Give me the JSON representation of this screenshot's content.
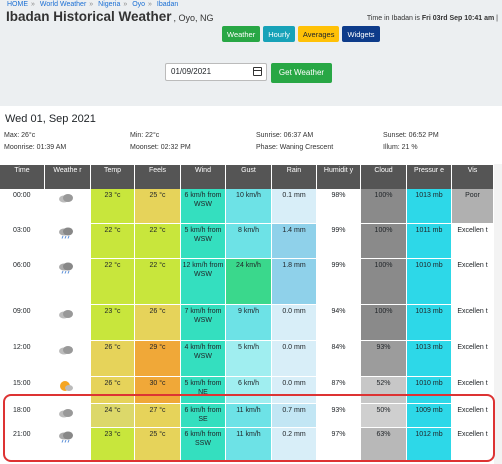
{
  "breadcrumb": [
    "HOME",
    "World Weather",
    "Nigeria",
    "Oyo",
    "Ibadan"
  ],
  "title": "Ibadan Historical Weather",
  "location": ", Oyo, NG",
  "time_label": "Time in Ibadan is ",
  "time_value": "Fri 03rd Sep 10:41 am",
  "time_suffix": " |",
  "nav_buttons": [
    "Weather",
    "Hourly",
    "Averages",
    "Widgets"
  ],
  "date_input": "01/09/2021",
  "get_weather": "Get Weather",
  "day_title": "Wed 01, Sep 2021",
  "summary": {
    "max": "Max: 26°c",
    "min": "Min: 22°c",
    "sunrise": "Sunrise: 06:37 AM",
    "sunset": "Sunset: 06:52 PM",
    "moonrise": "Moonrise: 01:39 AM",
    "moonset": "Moonset: 02:32 PM",
    "phase": "Phase: Waning Crescent",
    "illum": "Illum: 21 %"
  },
  "headers": [
    "Time",
    "Weathe r",
    "Temp",
    "Feels",
    "Wind",
    "Gust",
    "Rain",
    "Humidit y",
    "Cloud",
    "Pressur e",
    "Vis"
  ],
  "rows": [
    {
      "time": "00:00",
      "temp": "23 °c",
      "feels": "25 °c",
      "wind": "6 km/h from WSW",
      "gust": "10 km/h",
      "rain": "0.1 mm",
      "humidity": "98%",
      "cloud": "100%",
      "pressure": "1013 mb",
      "vis": "Poor"
    },
    {
      "time": "03:00",
      "temp": "22 °c",
      "feels": "22 °c",
      "wind": "5 km/h from WSW",
      "gust": "8 km/h",
      "rain": "1.4 mm",
      "humidity": "99%",
      "cloud": "100%",
      "pressure": "1011 mb",
      "vis": "Excellen t"
    },
    {
      "time": "06:00",
      "temp": "22 °c",
      "feels": "22 °c",
      "wind": "12 km/h from WSW",
      "gust": "24 km/h",
      "rain": "1.8 mm",
      "humidity": "99%",
      "cloud": "100%",
      "pressure": "1010 mb",
      "vis": "Excellen t"
    },
    {
      "time": "09:00",
      "temp": "23 °c",
      "feels": "26 °c",
      "wind": "7 km/h from WSW",
      "gust": "9 km/h",
      "rain": "0.0 mm",
      "humidity": "94%",
      "cloud": "100%",
      "pressure": "1013 mb",
      "vis": "Excellen t"
    },
    {
      "time": "12:00",
      "temp": "26 °c",
      "feels": "29 °c",
      "wind": "4 km/h from WSW",
      "gust": "5 km/h",
      "rain": "0.0 mm",
      "humidity": "84%",
      "cloud": "93%",
      "pressure": "1013 mb",
      "vis": "Excellen t"
    },
    {
      "time": "15:00",
      "temp": "26 °c",
      "feels": "30 °c",
      "wind": "5 km/h from NE",
      "gust": "6 km/h",
      "rain": "0.0 mm",
      "humidity": "87%",
      "cloud": "52%",
      "pressure": "1010 mb",
      "vis": "Excellen t"
    },
    {
      "time": "18:00",
      "temp": "24 °c",
      "feels": "27 °c",
      "wind": "6 km/h from SE",
      "gust": "11 km/h",
      "rain": "0.7 mm",
      "humidity": "93%",
      "cloud": "50%",
      "pressure": "1009 mb",
      "vis": "Excellen t"
    },
    {
      "time": "21:00",
      "temp": "23 °c",
      "feels": "25 °c",
      "wind": "6 km/h from SSW",
      "gust": "11 km/h",
      "rain": "0.2 mm",
      "humidity": "97%",
      "cloud": "63%",
      "pressure": "1012 mb",
      "vis": "Excellen t"
    }
  ],
  "icons": [
    "cloudy-icon",
    "rain-cloud-icon",
    "rain-cloud-icon",
    "cloudy-icon",
    "cloudy-icon",
    "sun-cloud-icon",
    "cloudy-icon",
    "rain-cloud-icon"
  ],
  "colors": {
    "temp": [
      "#c8e63c",
      "#c8e63c",
      "#c8e63c",
      "#c8e63c",
      "#e6d35a",
      "#e6d35a",
      "#dcd86a",
      "#c8e63c"
    ],
    "feels": [
      "#e6d35a",
      "#c8e63c",
      "#c8e63c",
      "#e6d35a",
      "#f0a838",
      "#f0a838",
      "#e6d35a",
      "#e6d35a"
    ],
    "wind": "#34dfbf",
    "gust": [
      "#6de2e6",
      "#6de2e6",
      "#3ad88c",
      "#6de2e6",
      "#a0eef0",
      "#a0eef0",
      "#6de2e6",
      "#6de2e6"
    ],
    "rain": [
      "#d8eef8",
      "#8fd1ea",
      "#8fd1ea",
      "#d8eef8",
      "#d8eef8",
      "#d8eef8",
      "#c2e6f4",
      "#d8eef8"
    ],
    "cloud": [
      "#8a8a8a",
      "#8a8a8a",
      "#8a8a8a",
      "#8a8a8a",
      "#9c9c9c",
      "#c7c7c7",
      "#cfcfcf",
      "#b8b8b8"
    ],
    "pressure": "#2dd8e8",
    "vis": [
      "#b0b0b0",
      "#fff",
      "#fff",
      "#fff",
      "#fff",
      "#fff",
      "#fff",
      "#fff"
    ],
    "header": "#555555"
  }
}
